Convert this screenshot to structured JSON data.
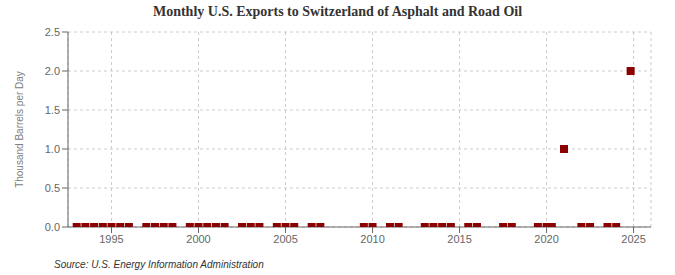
{
  "chart_data": {
    "type": "scatter",
    "title": "Monthly U.S. Exports to Switzerland of Asphalt and Road Oil",
    "ylabel": "Thousand Barrels per Day",
    "source": "Source: U.S. Energy Information Administration",
    "x": [
      1993.0,
      1993.5,
      1994.0,
      1994.5,
      1995.0,
      1995.5,
      1996.0,
      1997.0,
      1997.5,
      1998.0,
      1998.5,
      1999.5,
      2000.0,
      2000.5,
      2001.0,
      2001.5,
      2002.5,
      2003.0,
      2003.5,
      2004.5,
      2005.0,
      2005.5,
      2006.5,
      2007.0,
      2009.5,
      2010.0,
      2011.0,
      2011.5,
      2013.0,
      2013.5,
      2014.0,
      2014.5,
      2015.5,
      2016.0,
      2017.5,
      2018.0,
      2019.5,
      2020.0,
      2020.3,
      2021.0,
      2022.0,
      2022.5,
      2023.5,
      2024.0,
      2024.83
    ],
    "values": [
      0.0,
      0.0,
      0.0,
      0.0,
      0.0,
      0.0,
      0.0,
      0.0,
      0.0,
      0.0,
      0.0,
      0.0,
      0.0,
      0.0,
      0.0,
      0.0,
      0.0,
      0.0,
      0.0,
      0.0,
      0.0,
      0.0,
      0.0,
      0.0,
      0.0,
      0.0,
      0.0,
      0.0,
      0.0,
      0.0,
      0.0,
      0.0,
      0.0,
      0.0,
      0.0,
      0.0,
      0.0,
      0.0,
      0.0,
      1.0,
      0.0,
      0.0,
      0.0,
      0.0,
      2.0
    ],
    "color": "#8b0000",
    "marker": "square",
    "xlim": [
      1992.5,
      2026
    ],
    "ylim": [
      0,
      2.5
    ],
    "xticks": [
      1995,
      2000,
      2005,
      2010,
      2015,
      2020,
      2025
    ],
    "yticks": [
      {
        "value": 0.0,
        "label": "0.0"
      },
      0.5,
      {
        "value": 1.0,
        "label": "1.0"
      },
      1.5,
      {
        "value": 2.0,
        "label": "2.0"
      },
      2.5
    ],
    "grid": true
  }
}
